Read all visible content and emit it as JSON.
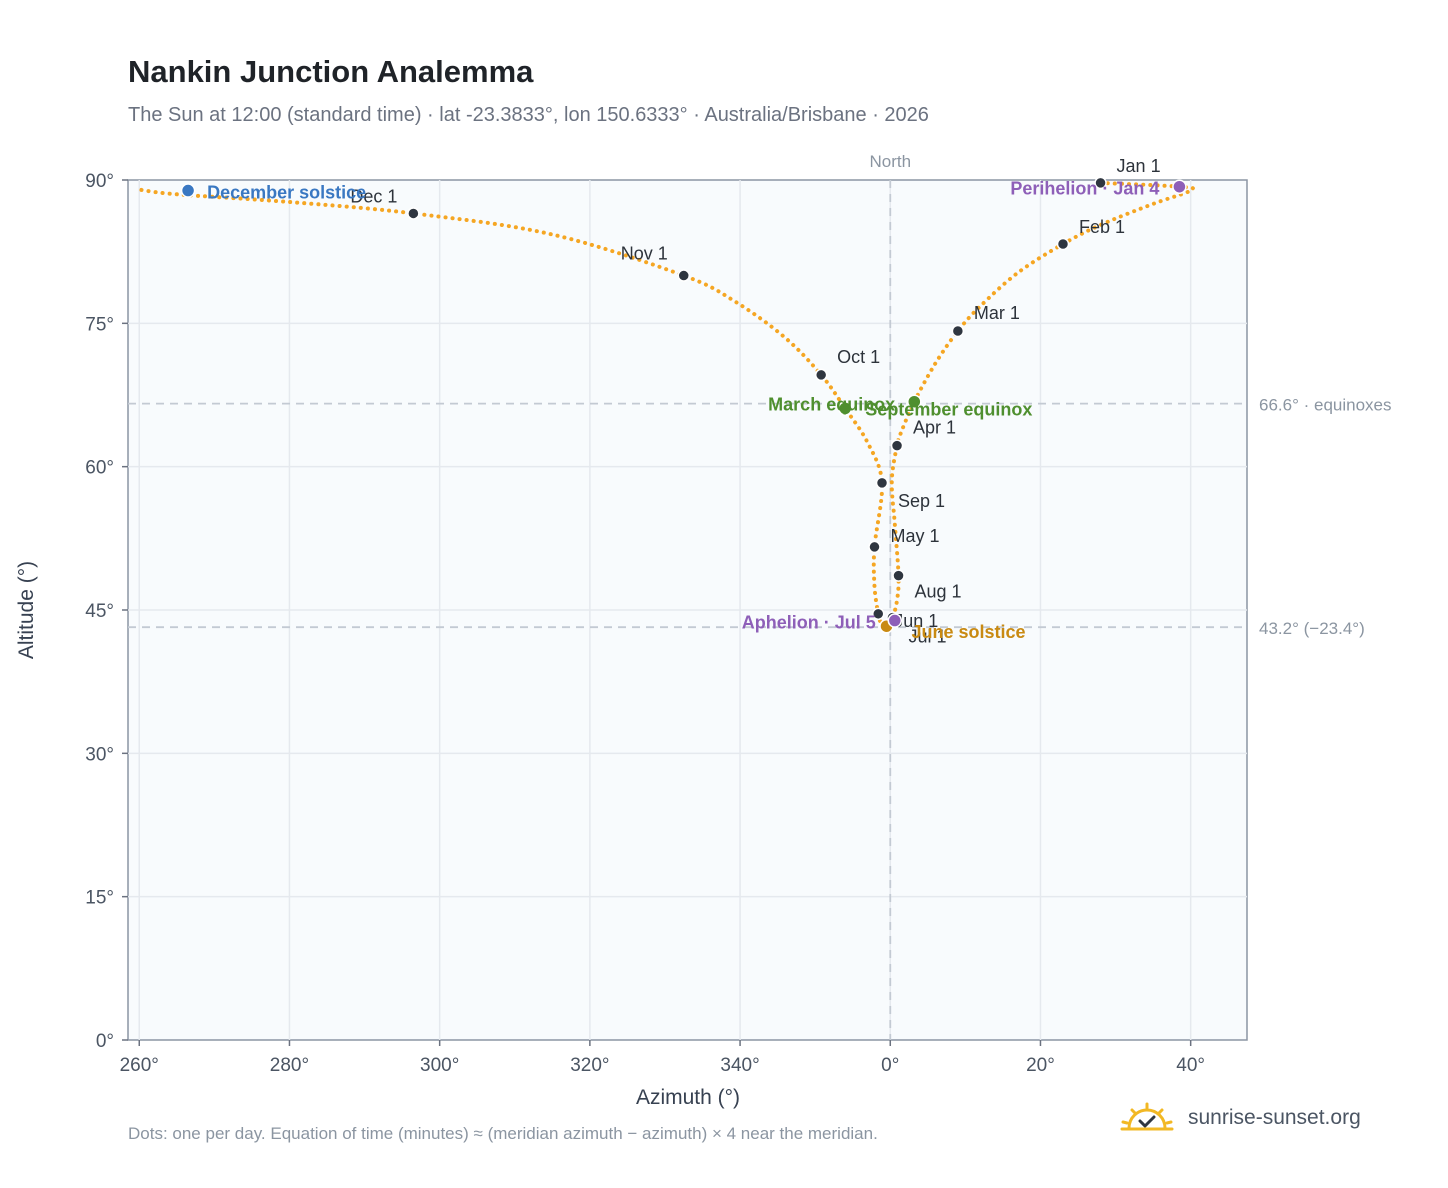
{
  "header": {
    "title": "Nankin Junction Analemma",
    "subtitle": "The Sun at 12:00 (standard time) · lat -23.3833°, lon 150.6333° · Australia/Brisbane · 2026"
  },
  "footer": {
    "note": "Dots: one per day. Equation of time (minutes) ≈ (meridian azimuth − azimuth) × 4 near the meridian.",
    "brand": "sunrise-sunset.org"
  },
  "icons": {
    "brand_logo": "sun-check-icon"
  },
  "colors": {
    "analemma": "#f5a623",
    "month_marker": "#2f3640",
    "equinox": "#4f8f2f",
    "december_solstice": "#3a78c2",
    "june_solstice": "#c98a12",
    "perihelion_aphelion": "#8e5fb8",
    "plot_background": "#f8fbfd",
    "grid": "#e5e9ee",
    "reference_line": "#c3cad3"
  },
  "chart_data": {
    "type": "scatter",
    "title": "Nankin Junction Analemma",
    "xlabel": "Azimuth (°)",
    "ylabel": "Altitude (°)",
    "xlim": [
      -101.5,
      47.5
    ],
    "ylim": [
      0,
      90
    ],
    "grid": true,
    "x_ticks": [
      -100,
      -80,
      -60,
      -40,
      -20,
      0,
      20,
      40
    ],
    "x_tick_labels": [
      "260°",
      "280°",
      "300°",
      "320°",
      "340°",
      "0°",
      "20°",
      "40°"
    ],
    "y_ticks": [
      0,
      15,
      30,
      45,
      60,
      75,
      90
    ],
    "y_tick_labels": [
      "0°",
      "15°",
      "30°",
      "45°",
      "60°",
      "75°",
      "90°"
    ],
    "north_line": {
      "azimuth": 0,
      "label": "North"
    },
    "reference_lines": [
      {
        "altitude": 66.6,
        "label": "66.6° · equinoxes"
      },
      {
        "altitude": 43.2,
        "label": "43.2° (−23.4°)"
      }
    ],
    "analemma_path": [
      {
        "az": 28.0,
        "alt": 89.7
      },
      {
        "az": 38.5,
        "alt": 89.3
      },
      {
        "az": 40.0,
        "alt": 88.9
      },
      {
        "az": 35.0,
        "alt": 87.5
      },
      {
        "az": 28.0,
        "alt": 85.3
      },
      {
        "az": 23.0,
        "alt": 83.3
      },
      {
        "az": 17.0,
        "alt": 80.3
      },
      {
        "az": 12.0,
        "alt": 76.8
      },
      {
        "az": 9.0,
        "alt": 74.2
      },
      {
        "az": 6.0,
        "alt": 70.8
      },
      {
        "az": 3.2,
        "alt": 66.8
      },
      {
        "az": 1.5,
        "alt": 63.7
      },
      {
        "az": 0.9,
        "alt": 62.2
      },
      {
        "az": 0.2,
        "alt": 58.5
      },
      {
        "az": 0.6,
        "alt": 54.0
      },
      {
        "az": 1.1,
        "alt": 48.6
      },
      {
        "az": 0.9,
        "alt": 46.0
      },
      {
        "az": 0.3,
        "alt": 44.2
      },
      {
        "az": -0.5,
        "alt": 43.3
      },
      {
        "az": -1.2,
        "alt": 43.6
      },
      {
        "az": -1.6,
        "alt": 44.6
      },
      {
        "az": -2.1,
        "alt": 47.5
      },
      {
        "az": -2.1,
        "alt": 51.6
      },
      {
        "az": -1.1,
        "alt": 58.3
      },
      {
        "az": -3.0,
        "alt": 62.5
      },
      {
        "az": -6.0,
        "alt": 66.1
      },
      {
        "az": -9.2,
        "alt": 69.6
      },
      {
        "az": -14.0,
        "alt": 73.5
      },
      {
        "az": -20.5,
        "alt": 77.2
      },
      {
        "az": -27.5,
        "alt": 80.0
      },
      {
        "az": -45.0,
        "alt": 84.3
      },
      {
        "az": -63.5,
        "alt": 86.5
      },
      {
        "az": -80.0,
        "alt": 87.7
      },
      {
        "az": -95.0,
        "alt": 88.5
      },
      {
        "az": -100.0,
        "alt": 89.0
      }
    ],
    "month_markers": [
      {
        "label": "Jan 1",
        "az": 28.0,
        "alt": 89.7
      },
      {
        "label": "Feb 1",
        "az": 23.0,
        "alt": 83.3
      },
      {
        "label": "Mar 1",
        "az": 9.0,
        "alt": 74.2
      },
      {
        "label": "Apr 1",
        "az": 0.9,
        "alt": 62.2
      },
      {
        "label": "May 1",
        "az": -2.1,
        "alt": 51.6
      },
      {
        "label": "Jun 1",
        "az": -1.6,
        "alt": 44.6
      },
      {
        "label": "Jul 1",
        "az": 0.3,
        "alt": 44.2
      },
      {
        "label": "Aug 1",
        "az": 1.1,
        "alt": 48.6
      },
      {
        "label": "Sep 1",
        "az": -1.1,
        "alt": 58.3
      },
      {
        "label": "Oct 1",
        "az": -9.2,
        "alt": 69.6
      },
      {
        "label": "Nov 1",
        "az": -27.5,
        "alt": 80.0
      },
      {
        "label": "Dec 1",
        "az": -63.5,
        "alt": 86.5
      }
    ],
    "events": [
      {
        "label": "December solstice",
        "az": -93.5,
        "alt": 88.9,
        "kind": "december_solstice"
      },
      {
        "label": "March equinox",
        "az": -6.0,
        "alt": 66.1,
        "kind": "equinox"
      },
      {
        "label": "September equinox",
        "az": 3.2,
        "alt": 66.8,
        "kind": "equinox"
      },
      {
        "label": "June solstice",
        "az": -0.5,
        "alt": 43.3,
        "kind": "june_solstice"
      },
      {
        "label": "Perihelion · Jan 4",
        "az": 38.5,
        "alt": 89.3,
        "kind": "perihelion_aphelion"
      },
      {
        "label": "Aphelion · Jul 5",
        "az": 0.6,
        "alt": 43.9,
        "kind": "perihelion_aphelion"
      }
    ]
  }
}
